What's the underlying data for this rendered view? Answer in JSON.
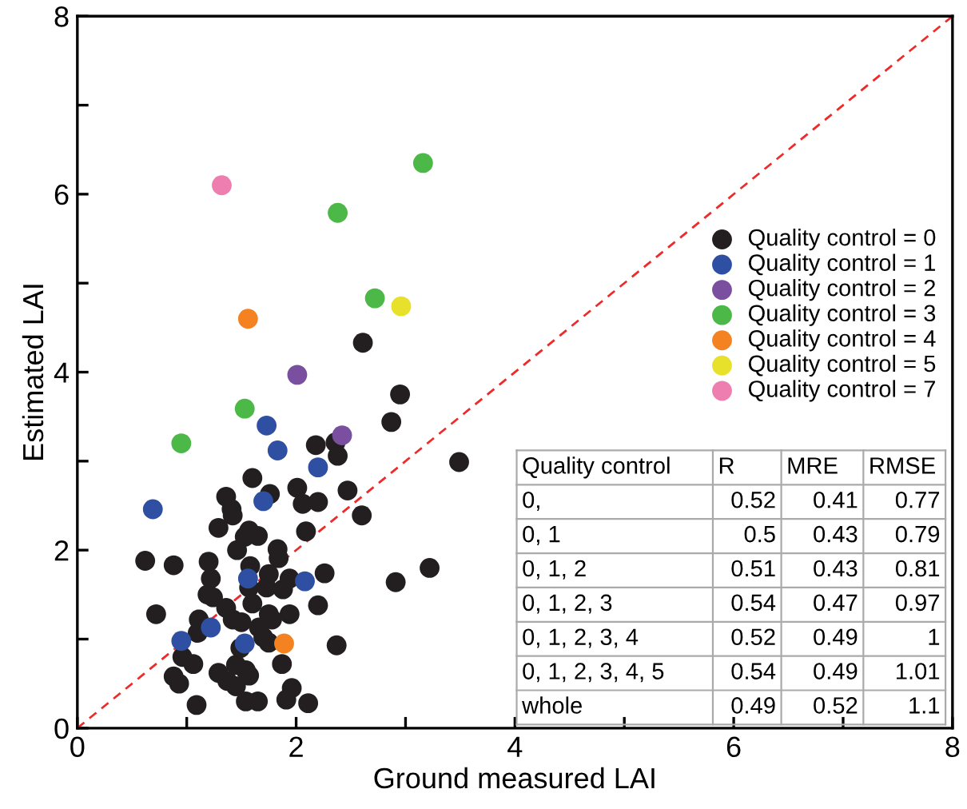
{
  "chart_data": {
    "type": "scatter",
    "xlabel": "Ground measured LAI",
    "ylabel": "Estimated LAI",
    "xlim": [
      0,
      8
    ],
    "ylim": [
      0,
      8
    ],
    "xticks": [
      0,
      {
        "value": 1,
        "label": null
      },
      2,
      {
        "value": 3,
        "label": null
      },
      4,
      {
        "value": 5,
        "label": null
      },
      6,
      {
        "value": 7,
        "label": null
      },
      8
    ],
    "yticks": [
      0,
      {
        "value": 1,
        "label": null
      },
      2,
      {
        "value": 3,
        "label": null
      },
      4,
      {
        "value": 5,
        "label": null
      },
      6,
      {
        "value": 7,
        "label": null
      },
      8
    ],
    "grid": false,
    "legend": "right",
    "marker": "circle",
    "series": [
      {
        "name": "Quality control = 0",
        "color": "#231f20",
        "x": [
          2.61,
          2.95,
          2.87,
          2.18,
          2.36,
          2.38,
          3.49,
          1.6,
          2.01,
          1.76,
          2.06,
          2.2,
          2.47,
          2.6,
          1.36,
          1.41,
          1.42,
          1.29,
          1.57,
          1.65,
          1.53,
          2.09,
          1.46,
          1.83,
          1.84,
          0.62,
          0.88,
          1.2,
          1.22,
          1.58,
          1.57,
          1.75,
          1.73,
          1.88,
          1.94,
          2.26,
          2.91,
          3.22,
          1.19,
          1.24,
          1.6,
          2.2,
          0.72,
          1.36,
          1.11,
          1.42,
          1.5,
          1.75,
          1.78,
          1.94,
          1.1,
          1.66,
          1.7,
          1.75,
          1.49,
          2.37,
          0.96,
          1.06,
          1.87,
          1.29,
          1.45,
          1.54,
          1.57,
          0.88,
          0.93,
          1.37,
          1.45,
          1.96,
          1.91,
          1.54,
          1.65,
          2.11,
          1.09
        ],
        "values": [
          4.33,
          3.75,
          3.44,
          3.18,
          3.21,
          3.06,
          2.99,
          2.81,
          2.7,
          2.63,
          2.52,
          2.54,
          2.67,
          2.39,
          2.6,
          2.46,
          2.39,
          2.25,
          2.22,
          2.16,
          2.15,
          2.21,
          2.0,
          2.01,
          1.91,
          1.88,
          1.83,
          1.87,
          1.68,
          1.82,
          1.58,
          1.73,
          1.58,
          1.56,
          1.68,
          1.74,
          1.64,
          1.8,
          1.5,
          1.47,
          1.4,
          1.38,
          1.28,
          1.35,
          1.22,
          1.22,
          1.19,
          1.28,
          1.22,
          1.28,
          1.07,
          1.13,
          1.02,
          0.96,
          0.9,
          0.93,
          0.8,
          0.72,
          0.72,
          0.62,
          0.71,
          0.65,
          0.59,
          0.58,
          0.5,
          0.53,
          0.47,
          0.45,
          0.32,
          0.3,
          0.3,
          0.28,
          0.26
        ]
      },
      {
        "name": "Quality control = 1",
        "color": "#2f4fa2",
        "x": [
          1.73,
          1.83,
          0.69,
          2.2,
          1.7,
          1.56,
          2.08,
          1.22,
          0.95,
          1.53
        ],
        "values": [
          3.4,
          3.12,
          2.46,
          2.93,
          2.55,
          1.68,
          1.65,
          1.13,
          0.98,
          0.95
        ]
      },
      {
        "name": "Quality control = 2",
        "color": "#7b4fa0",
        "x": [
          2.01,
          2.42
        ],
        "values": [
          3.97,
          3.29
        ]
      },
      {
        "name": "Quality control = 3",
        "color": "#4cb848",
        "x": [
          3.16,
          2.38,
          2.72,
          1.53,
          0.95
        ],
        "values": [
          6.35,
          5.79,
          4.83,
          3.59,
          3.2
        ]
      },
      {
        "name": "Quality control = 4",
        "color": "#f58220",
        "x": [
          1.56,
          1.89
        ],
        "values": [
          4.6,
          0.95
        ]
      },
      {
        "name": "Quality control = 5",
        "color": "#e8e12b",
        "x": [
          2.96
        ],
        "values": [
          4.74
        ]
      },
      {
        "name": "Quality control = 7",
        "color": "#ef7eb0",
        "x": [
          1.32
        ],
        "values": [
          6.1
        ]
      },
      {
        "type": "line",
        "color": "#ee2a2a",
        "line_style": "dashed",
        "marker": "none",
        "x": [
          0,
          8
        ],
        "values": [
          0,
          8
        ]
      }
    ],
    "annotations": [
      "Quality control",
      "R",
      "MRE",
      "RMSE",
      "0,",
      "0.52",
      "0.41",
      "0.77",
      "0, 1",
      "0.5",
      "0.43",
      "0.79",
      "0, 1, 2",
      "0.51",
      "0.43",
      "0.81",
      "0, 1, 2, 3",
      "0.54",
      "0.47",
      "0.97",
      "0, 1, 2, 3, 4",
      "0.52",
      "0.49",
      "1",
      "0, 1, 2, 3, 4, 5",
      "0.54",
      "0.49",
      "1.01",
      "whole",
      "0.49",
      "0.52",
      "1.1"
    ]
  }
}
